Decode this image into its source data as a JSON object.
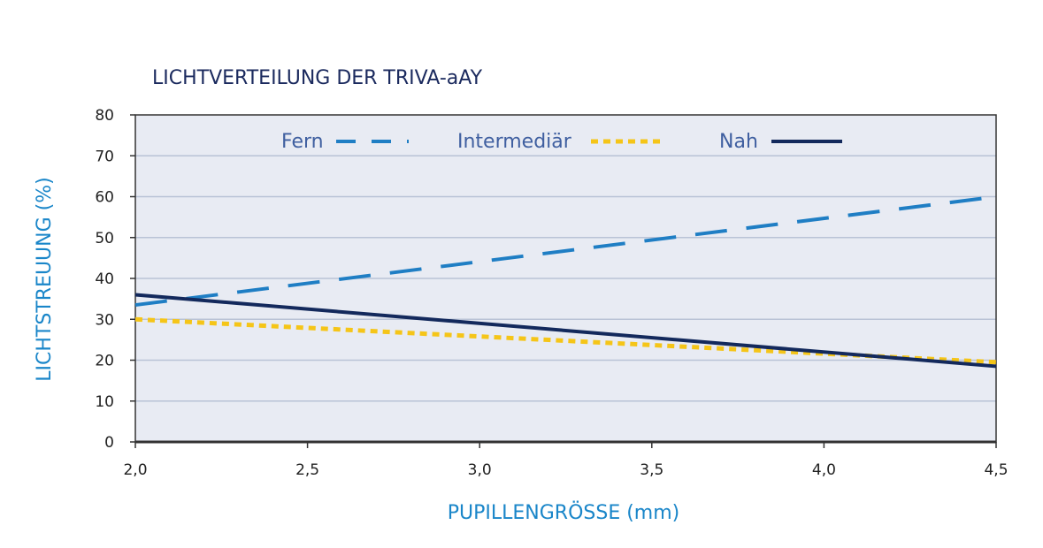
{
  "chart_data": {
    "type": "line",
    "title": "LICHTVERTEILUNG DER TRIVA-aAY",
    "xlabel": "PUPILLENGRÖSSE (mm)",
    "ylabel": "LICHTSTREUUNG (%)",
    "xlim": [
      2.0,
      4.5
    ],
    "ylim": [
      0,
      80
    ],
    "x_ticks": [
      2.0,
      2.5,
      3.0,
      3.5,
      4.0,
      4.5
    ],
    "x_tick_labels": [
      "2,0",
      "2,5",
      "3,0",
      "3,5",
      "4,0",
      "4,5"
    ],
    "y_ticks": [
      0,
      10,
      20,
      30,
      40,
      50,
      60,
      70,
      80
    ],
    "y_tick_labels": [
      "0",
      "10",
      "20",
      "30",
      "40",
      "50",
      "60",
      "70",
      "80"
    ],
    "grid": true,
    "legend_position": "top",
    "series": [
      {
        "name": "Fern",
        "x": [
          2.0,
          4.5
        ],
        "y": [
          33.5,
          60.0
        ],
        "color": "#1f7ec4",
        "style": "dashed"
      },
      {
        "name": "Intermediär",
        "x": [
          2.0,
          4.5
        ],
        "y": [
          30.0,
          19.5
        ],
        "color": "#f5c518",
        "style": "dotted"
      },
      {
        "name": "Nah",
        "x": [
          2.0,
          4.5
        ],
        "y": [
          36.0,
          18.5
        ],
        "color": "#13295c",
        "style": "solid"
      }
    ],
    "colors": {
      "plot_background": "#e8ebf3",
      "gridline": "#b9c3d6",
      "axis": "#333333"
    }
  }
}
